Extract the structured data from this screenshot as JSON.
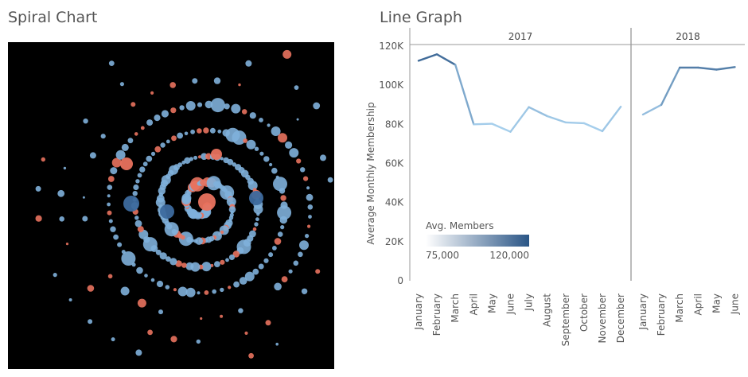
{
  "titles": {
    "spiral": "Spiral Chart",
    "line": "Line Graph"
  },
  "colors": {
    "dot_blue": "#7fb0da",
    "dot_red": "#e8725e",
    "line_light": "#a9d2ef",
    "line_dark": "#2a5a8c",
    "axis": "#999999"
  },
  "chart_data": [
    {
      "type": "scatter",
      "title": "Spiral Chart",
      "note": "Spiral arrangement of circles colored blue or red on black background"
    },
    {
      "type": "line",
      "title": "Line Graph",
      "ylabel": "Average Monthly Membership",
      "ylim": [
        0,
        120000
      ],
      "y_ticks": [
        "0",
        "20K",
        "40K",
        "60K",
        "80K",
        "100K",
        "120K"
      ],
      "panels": [
        {
          "year": "2017",
          "months": [
            "January",
            "February",
            "March",
            "April",
            "May",
            "June",
            "July",
            "August",
            "September",
            "October",
            "November",
            "December"
          ],
          "values": [
            112500,
            115800,
            110500,
            80000,
            80300,
            76200,
            88800,
            84200,
            81000,
            80600,
            76500,
            89000
          ]
        },
        {
          "year": "2018",
          "months": [
            "January",
            "February",
            "March",
            "April",
            "May",
            "June"
          ],
          "values": [
            85000,
            90000,
            109000,
            109000,
            108000,
            109300
          ]
        }
      ],
      "legend": {
        "title": "Avg. Members",
        "min_label": "75,000",
        "max_label": "120,000",
        "min": 75000,
        "max": 120000
      }
    }
  ]
}
